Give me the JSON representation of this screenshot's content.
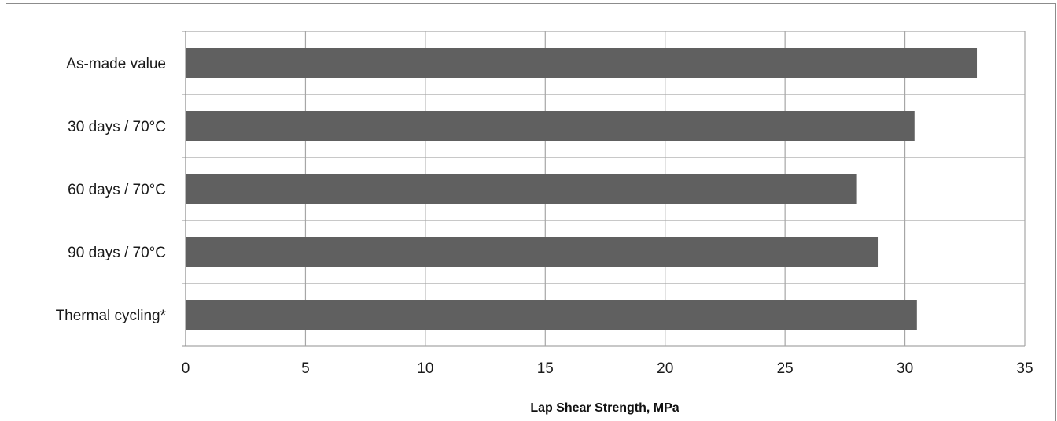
{
  "chart_data": {
    "type": "bar",
    "orientation": "horizontal",
    "title": "",
    "categories": [
      "As-made value",
      "30 days / 70°C",
      "60 days / 70°C",
      "90 days / 70°C",
      "Thermal cycling*"
    ],
    "values": [
      33.0,
      30.4,
      28.0,
      28.9,
      30.5
    ],
    "xlabel": "Lap Shear Strength, MPa",
    "ylabel": "",
    "xlim": [
      0,
      35
    ],
    "xticks": [
      0,
      5,
      10,
      15,
      20,
      25,
      30,
      35
    ],
    "grid": true,
    "legend": "none",
    "bar_color": "#606060",
    "grid_color": "#a6a6a6"
  }
}
